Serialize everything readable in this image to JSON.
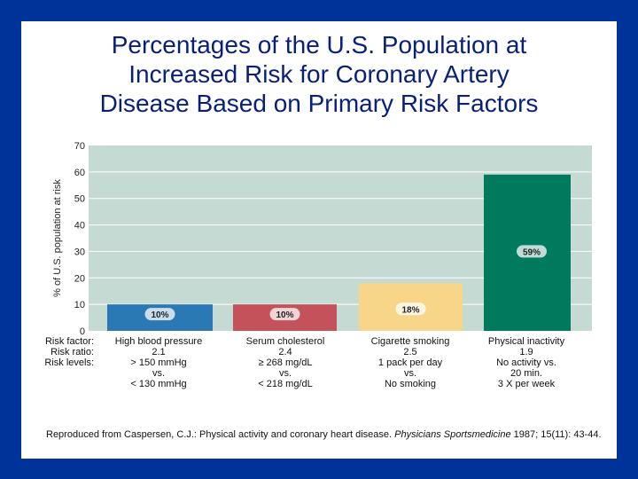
{
  "title": [
    "Percentages of the U.S. Population at",
    "Increased Risk for Coronary Artery",
    "Disease Based on Primary Risk Factors"
  ],
  "chart_data": {
    "type": "bar",
    "title": "Percentages of the U.S. Population at Increased Risk for Coronary Artery Disease Based on Primary Risk Factors",
    "ylabel": "% of U.S. population at risk",
    "ylim": [
      0,
      70
    ],
    "yticks": [
      0,
      10,
      20,
      30,
      40,
      50,
      60,
      70
    ],
    "grid": true,
    "categories": [
      "High blood pressure",
      "Serum cholesterol",
      "Cigarette smoking",
      "Physical inactivity"
    ],
    "values": [
      10,
      10,
      18,
      59
    ],
    "data_labels": [
      "10%",
      "10%",
      "18%",
      "59%"
    ],
    "colors": [
      "#2a78b4",
      "#c4525a",
      "#f7d68a",
      "#007a5c"
    ],
    "plot_background": "#c5dad2"
  },
  "row_labels": [
    "Risk factor:",
    "Risk ratio:",
    "Risk levels:"
  ],
  "categories_detail": [
    {
      "factor": "High blood pressure",
      "ratio": "2.1",
      "levels": [
        "> 150 mmHg",
        "vs.",
        "< 130 mmHg"
      ]
    },
    {
      "factor": "Serum cholesterol",
      "ratio": "2.4",
      "levels": [
        "≥ 268 mg/dL",
        "vs.",
        "< 218 mg/dL"
      ]
    },
    {
      "factor": "Cigarette smoking",
      "ratio": "2.5",
      "levels": [
        "1 pack per day",
        "vs.",
        "No smoking"
      ]
    },
    {
      "factor": "Physical inactivity",
      "ratio": "1.9",
      "levels": [
        "No activity vs.",
        "20 min.",
        "3 X per week"
      ]
    }
  ],
  "caption": {
    "text": "Reproduced from Caspersen, C.J.: Physical activity and coronary heart disease. ",
    "journal": "Physicians Sportsmedicine",
    "rest": " 1987; 15(11): 43-44."
  }
}
